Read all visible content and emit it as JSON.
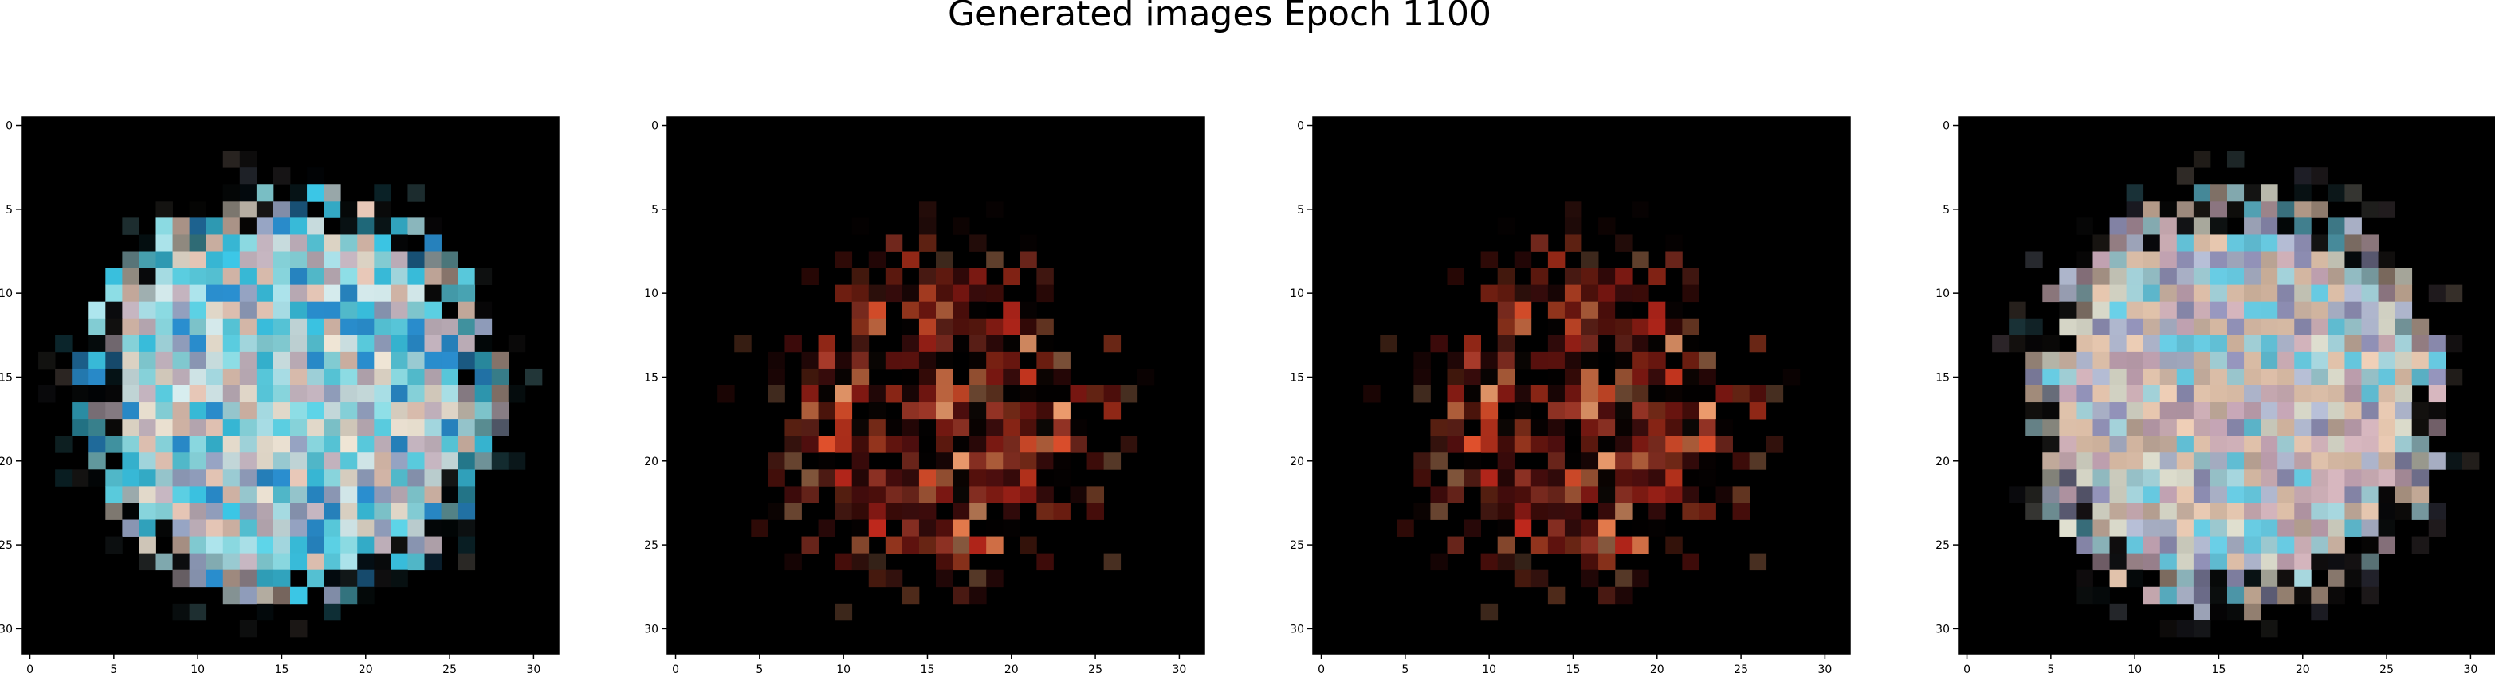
{
  "figure": {
    "title": "Generated images Epoch 1100"
  },
  "chart_data": [
    {
      "type": "heatmap",
      "description_of_content": "32x32 RGB generated image: roughly circular blob of light cyan/blue and pastel pixels on black background",
      "palette": [
        "#8fe0e8",
        "#aee6ee",
        "#d8eef0",
        "#c7b7c2",
        "#5ed6ea",
        "#2a8fd0",
        "#f0e6d6",
        "#9aa8c8",
        "#3cc8e8",
        "#e8c8b8"
      ],
      "shape": "round",
      "cx": 15.5,
      "cy": 16.2,
      "r": 12.8,
      "seed": 11,
      "xticks": [
        0,
        5,
        10,
        15,
        20,
        25,
        30
      ],
      "yticks": [
        0,
        5,
        10,
        15,
        20,
        25,
        30
      ],
      "xlim": [
        -0.5,
        31.5
      ],
      "ylim": [
        31.5,
        -0.5
      ]
    },
    {
      "type": "heatmap",
      "description_of_content": "32x32 RGB generated image: sparse blob of red, orange and dark maroon pixels with a few teal/green outliers on black background",
      "palette": [
        "#c0281c",
        "#e0502c",
        "#8a1a14",
        "#f08050",
        "#5a1010",
        "#d03820",
        "#a83a2a",
        "#f4a070",
        "#3a0c0c"
      ],
      "shape": "sparse",
      "cx": 16.0,
      "cy": 17.5,
      "r": 11.0,
      "seed": 23,
      "xticks": [
        0,
        5,
        10,
        15,
        20,
        25,
        30
      ],
      "yticks": [
        0,
        5,
        10,
        15,
        20,
        25,
        30
      ],
      "xlim": [
        -0.5,
        31.5
      ],
      "ylim": [
        31.5,
        -0.5
      ]
    },
    {
      "type": "heatmap",
      "description_of_content": "32x32 RGB generated image nearly identical to the second panel: sparse red/orange/maroon blob with teal/green outliers on black",
      "palette": [
        "#c0281c",
        "#e0502c",
        "#8a1a14",
        "#f08050",
        "#5a1010",
        "#d03820",
        "#a83a2a",
        "#f4a070",
        "#3a0c0c"
      ],
      "shape": "sparse",
      "cx": 16.0,
      "cy": 17.5,
      "r": 11.0,
      "seed": 23,
      "xticks": [
        0,
        5,
        10,
        15,
        20,
        25,
        30
      ],
      "yticks": [
        0,
        5,
        10,
        15,
        20,
        25,
        30
      ],
      "xlim": [
        -0.5,
        31.5
      ],
      "ylim": [
        31.5,
        -0.5
      ]
    },
    {
      "type": "heatmap",
      "description_of_content": "32x32 RGB generated image: roughly circular blob of pastel beige, pink, lavender and cyan pixels with dark blue edges on black background",
      "palette": [
        "#e8c8b0",
        "#d8b8c0",
        "#b8c0d8",
        "#c8a8b8",
        "#a8d8e0",
        "#f0d0b8",
        "#9898c0",
        "#e0e0d0",
        "#6ad0e8",
        "#c8b0a0"
      ],
      "shape": "round",
      "cx": 16.0,
      "cy": 16.5,
      "r": 12.8,
      "seed": 37,
      "xticks": [
        0,
        5,
        10,
        15,
        20,
        25,
        30
      ],
      "yticks": [
        0,
        5,
        10,
        15,
        20,
        25,
        30
      ],
      "xlim": [
        -0.5,
        31.5
      ],
      "ylim": [
        31.5,
        -0.5
      ]
    }
  ]
}
